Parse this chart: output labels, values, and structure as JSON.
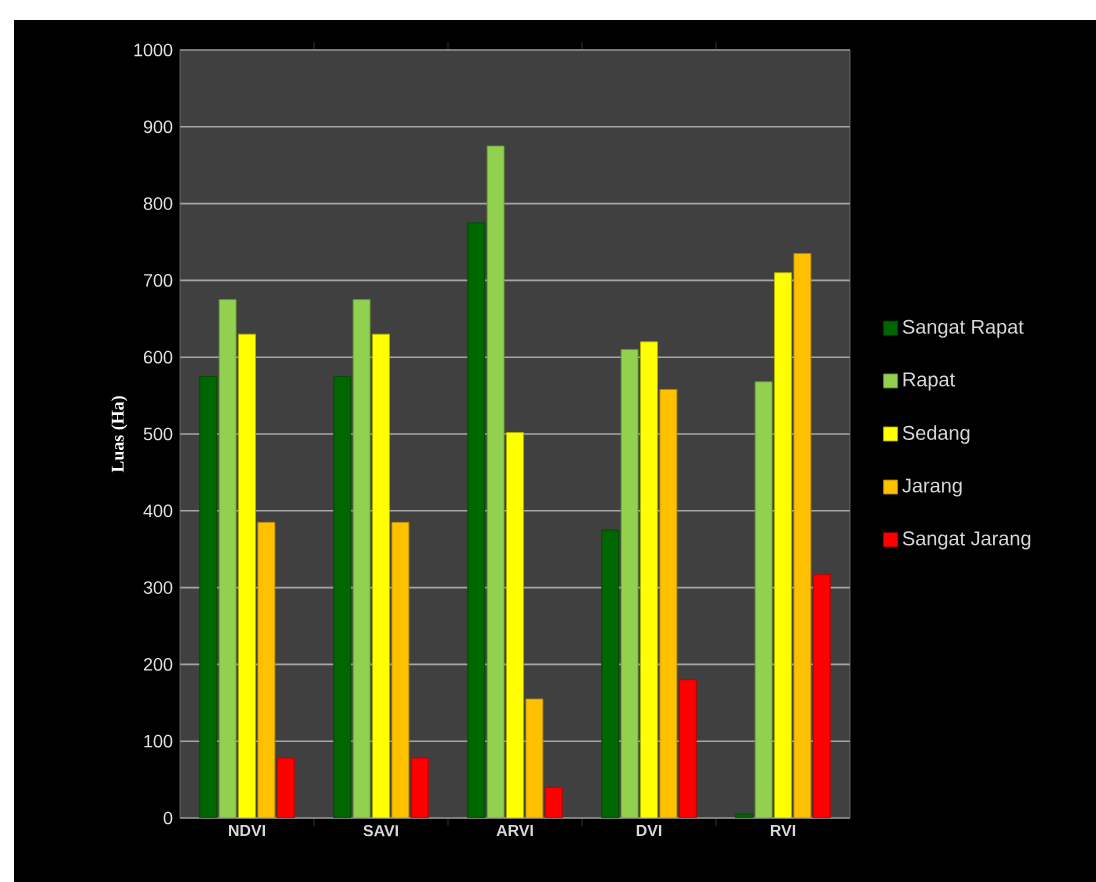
{
  "chart_data": {
    "type": "bar",
    "ylabel": "Luas (Ha)",
    "categories": [
      "NDVI",
      "SAVI",
      "ARVI",
      "DVI",
      "RVI"
    ],
    "series": [
      {
        "name": "Sangat Rapat",
        "color": "#006600",
        "values": [
          575,
          575,
          775,
          375,
          5
        ]
      },
      {
        "name": "Rapat",
        "color": "#92d050",
        "values": [
          675,
          675,
          875,
          610,
          568
        ]
      },
      {
        "name": "Sedang",
        "color": "#ffff00",
        "values": [
          630,
          630,
          502,
          620,
          710
        ]
      },
      {
        "name": "Jarang",
        "color": "#ffc000",
        "values": [
          385,
          385,
          155,
          558,
          735
        ]
      },
      {
        "name": "Sangat Jarang",
        "color": "#ff0000",
        "values": [
          78,
          78,
          40,
          180,
          317
        ]
      }
    ],
    "ylim": [
      0,
      1000
    ],
    "yticks": [
      0,
      100,
      200,
      300,
      400,
      500,
      600,
      700,
      800,
      900,
      1000
    ],
    "grid": "y",
    "legend": "right"
  }
}
